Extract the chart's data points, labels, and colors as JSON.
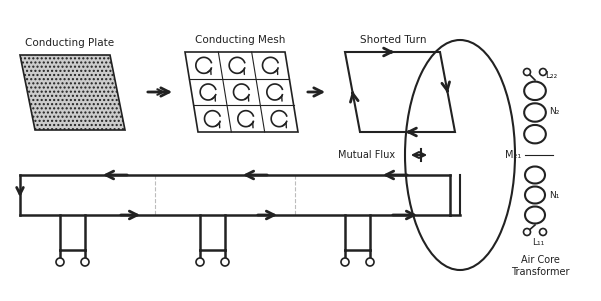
{
  "title": "",
  "bg_color": "#ffffff",
  "conducting_plate_label": "Conducting Plate",
  "conducting_mesh_label": "Conducting Mesh",
  "shorted_turn_label": "Shorted Turn",
  "mutual_flux_label": "Mutual Flux",
  "m21_label": "M₂₁",
  "n2_label": "N₂",
  "n1_label": "N₁",
  "l22_label": "L₂₂",
  "l11_label": "L₁₁",
  "air_core_label": "Air Core\nTransformer",
  "gray_color": "#aaaaaa",
  "dark_color": "#222222",
  "arrow_color": "#333333"
}
